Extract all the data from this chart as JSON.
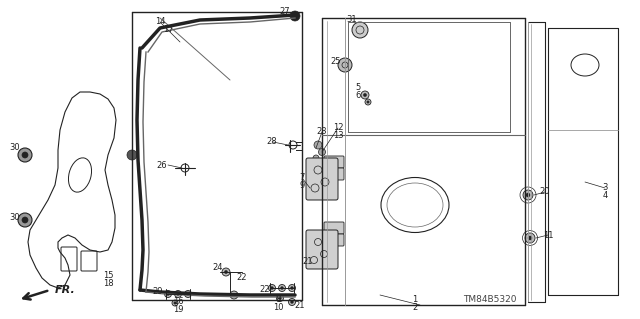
{
  "bg_color": "#ffffff",
  "watermark": "TM84B5320",
  "fig_w": 6.4,
  "fig_h": 3.19,
  "dpi": 100
}
